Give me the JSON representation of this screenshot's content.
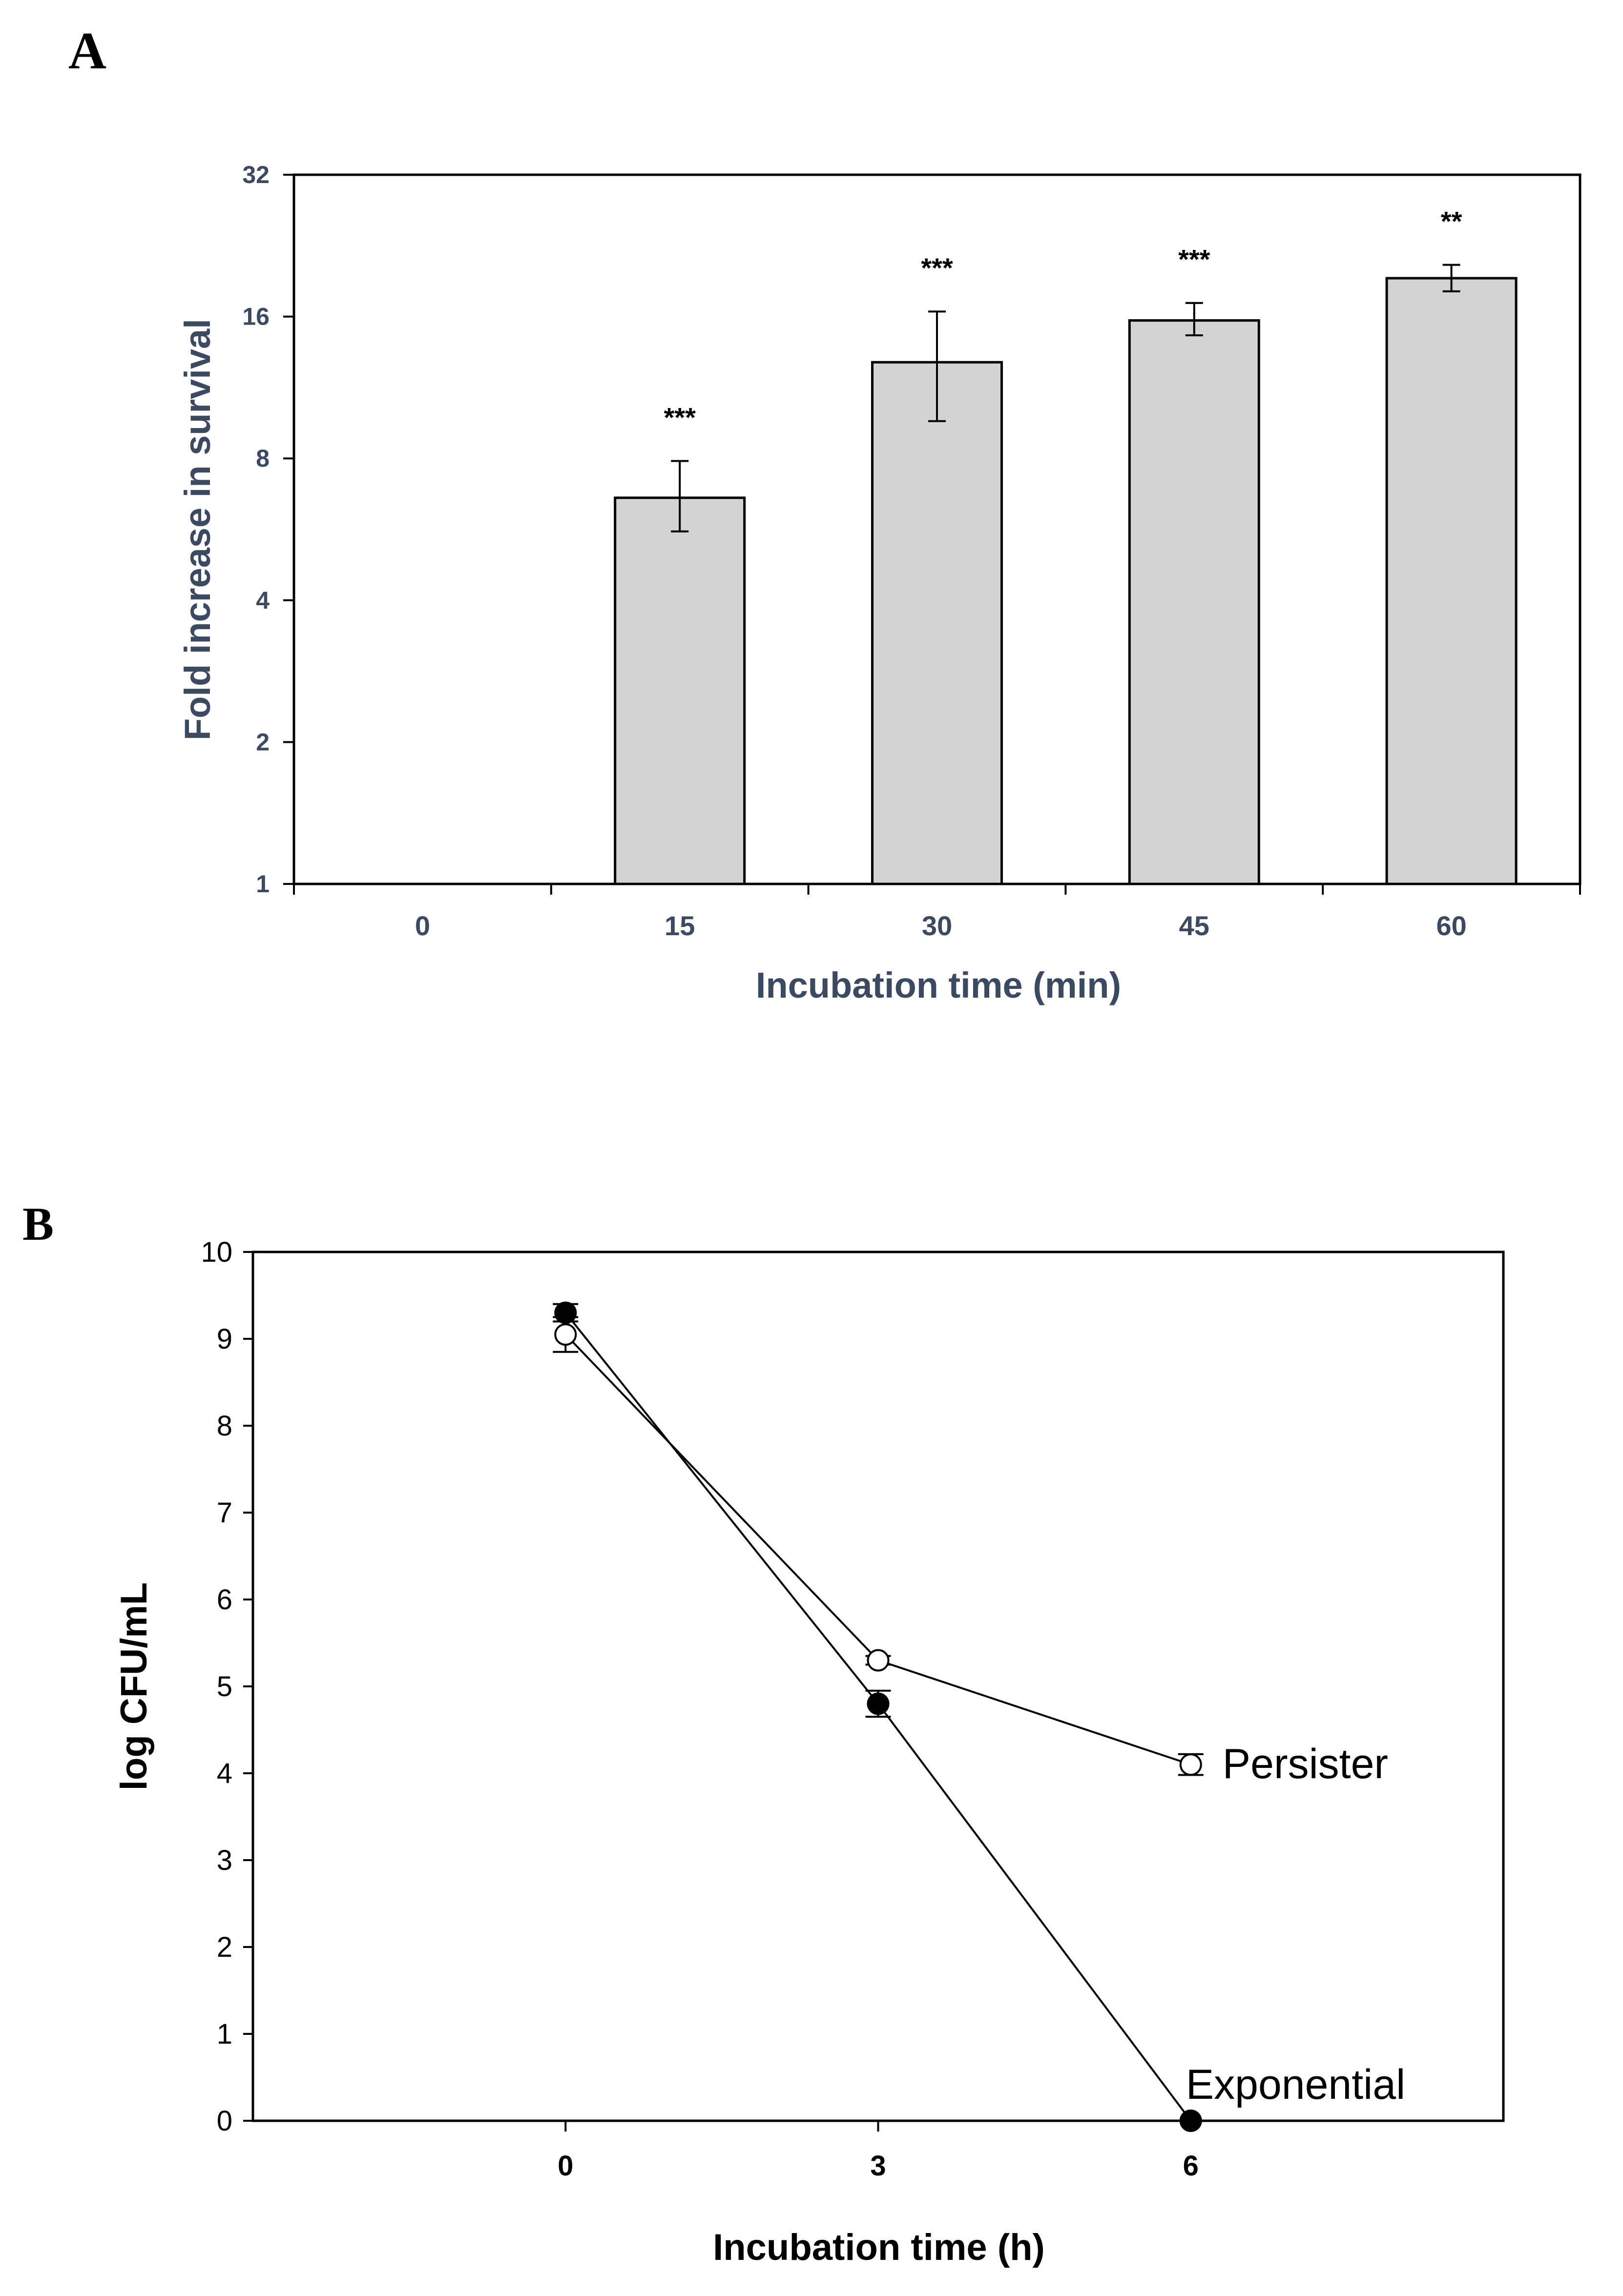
{
  "chart_data": [
    {
      "panel": "A",
      "type": "bar",
      "yscale": "log2",
      "categories": [
        "0",
        "15",
        "30",
        "45",
        "60"
      ],
      "values": [
        1,
        6.6,
        12.8,
        15.7,
        19.3
      ],
      "error_low": [
        null,
        5.6,
        9.6,
        14.6,
        18.1
      ],
      "error_high": [
        null,
        7.9,
        16.4,
        17.1,
        20.6
      ],
      "annotations": [
        "",
        "***",
        "***",
        "***",
        "**"
      ],
      "ylim": [
        1,
        32
      ],
      "yticks": [
        "1",
        "2",
        "4",
        "8",
        "16",
        "32"
      ],
      "ylabel": "Fold increase in survival",
      "xlabel": "Incubation time (min)",
      "colors": {
        "bar": "#d3d3d3",
        "axis_text": "#3b4a60"
      }
    },
    {
      "panel": "B",
      "type": "line",
      "x": [
        0,
        3,
        6
      ],
      "xticks": [
        "0",
        "3",
        "6"
      ],
      "xlim": [
        -3,
        9
      ],
      "ylim": [
        0,
        10
      ],
      "yticks": [
        "0",
        "1",
        "2",
        "3",
        "4",
        "5",
        "6",
        "7",
        "8",
        "9",
        "10"
      ],
      "xlabel": "Incubation time (h)",
      "ylabel": "log CFU/mL",
      "series": [
        {
          "name": "Persister",
          "marker": "open-circle",
          "values": [
            9.05,
            5.3,
            4.1
          ],
          "errors": [
            0.2,
            0.05,
            0.12
          ]
        },
        {
          "name": "Exponential",
          "marker": "filled-circle",
          "values": [
            9.3,
            4.8,
            0
          ],
          "errors": [
            0.1,
            0.15,
            0
          ]
        }
      ]
    }
  ]
}
